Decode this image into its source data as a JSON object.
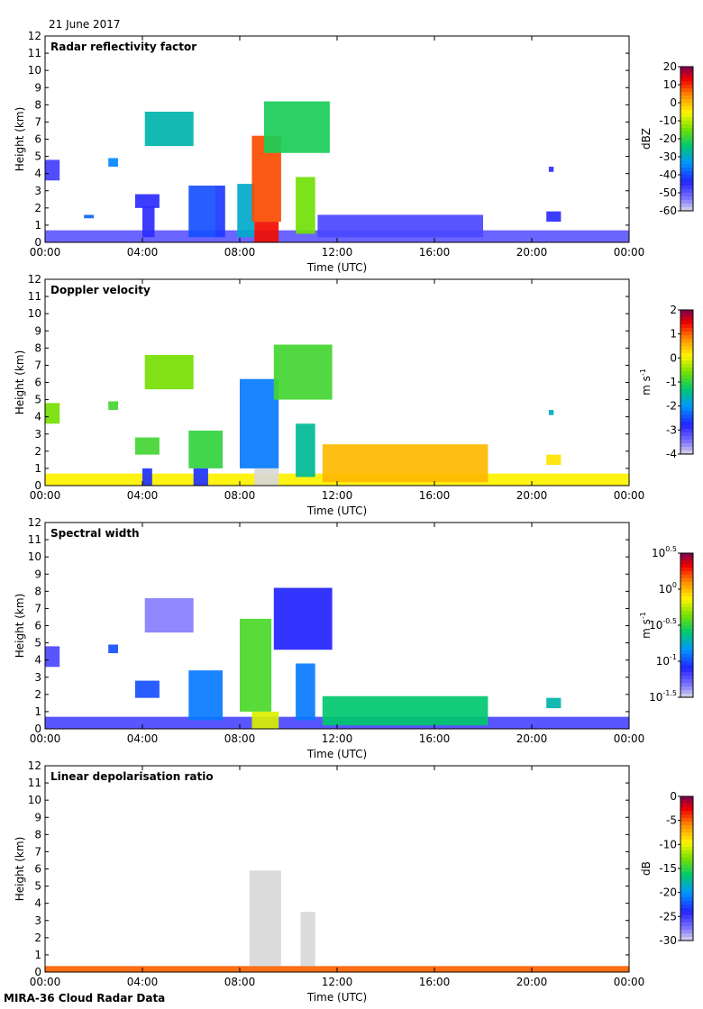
{
  "date_label": "21 June 2017",
  "footer": "MIRA-36 Cloud Radar Data",
  "chart_data": [
    {
      "type": "heatmap",
      "title": "Radar reflectivity factor",
      "xlabel": "Time (UTC)",
      "ylabel": "Height (km)",
      "xlim": [
        0,
        24
      ],
      "ylim": [
        0,
        12
      ],
      "xticks": [
        "00:00",
        "04:00",
        "08:00",
        "12:00",
        "16:00",
        "20:00",
        "00:00"
      ],
      "yticks": [
        "0",
        "1",
        "2",
        "3",
        "4",
        "5",
        "6",
        "7",
        "8",
        "9",
        "10",
        "11",
        "12"
      ],
      "colorbar": {
        "label": "dBZ",
        "ticks": [
          "20",
          "10",
          "0",
          "-10",
          "-20",
          "-30",
          "-40",
          "-50",
          "-60"
        ],
        "range": [
          -60,
          20
        ]
      },
      "regions": [
        {
          "t0": 0.0,
          "t1": 24.0,
          "h0": 0.0,
          "h1": 0.7,
          "value": -50
        },
        {
          "t0": 0.0,
          "t1": 0.6,
          "h0": 3.6,
          "h1": 4.8,
          "value": -47
        },
        {
          "t0": 1.6,
          "t1": 2.0,
          "h0": 1.4,
          "h1": 1.6,
          "value": -38
        },
        {
          "t0": 2.6,
          "t1": 3.0,
          "h0": 4.4,
          "h1": 4.9,
          "value": -35
        },
        {
          "t0": 3.7,
          "t1": 4.7,
          "h0": 2.0,
          "h1": 2.8,
          "value": -45
        },
        {
          "t0": 4.0,
          "t1": 4.5,
          "h0": 0.3,
          "h1": 2.1,
          "value": -45
        },
        {
          "t0": 4.1,
          "t1": 6.1,
          "h0": 5.6,
          "h1": 7.6,
          "value": -28
        },
        {
          "t0": 5.9,
          "t1": 7.0,
          "h0": 0.3,
          "h1": 3.3,
          "value": -40
        },
        {
          "t0": 7.0,
          "t1": 7.4,
          "h0": 0.3,
          "h1": 3.3,
          "value": -42
        },
        {
          "t0": 7.9,
          "t1": 8.6,
          "h0": 0.3,
          "h1": 3.4,
          "value": -30
        },
        {
          "t0": 8.5,
          "t1": 9.7,
          "h0": 1.2,
          "h1": 6.2,
          "value": 8
        },
        {
          "t0": 8.6,
          "t1": 9.6,
          "h0": 0.0,
          "h1": 1.2,
          "value": 12
        },
        {
          "t0": 9.0,
          "t1": 11.7,
          "h0": 5.2,
          "h1": 8.2,
          "value": -22
        },
        {
          "t0": 10.3,
          "t1": 11.1,
          "h0": 0.5,
          "h1": 3.8,
          "value": -15
        },
        {
          "t0": 11.2,
          "t1": 18.0,
          "h0": 0.3,
          "h1": 1.6,
          "value": -48
        },
        {
          "t0": 20.6,
          "t1": 21.2,
          "h0": 1.2,
          "h1": 1.8,
          "value": -45
        },
        {
          "t0": 20.7,
          "t1": 20.9,
          "h0": 4.1,
          "h1": 4.4,
          "value": -45
        }
      ]
    },
    {
      "type": "heatmap",
      "title": "Doppler velocity",
      "xlabel": "Time (UTC)",
      "ylabel": "Height (km)",
      "xlim": [
        0,
        24
      ],
      "ylim": [
        0,
        12
      ],
      "xticks": [
        "00:00",
        "04:00",
        "08:00",
        "12:00",
        "16:00",
        "20:00",
        "00:00"
      ],
      "yticks": [
        "0",
        "1",
        "2",
        "3",
        "4",
        "5",
        "6",
        "7",
        "8",
        "9",
        "10",
        "11",
        "12"
      ],
      "colorbar": {
        "label": "m s-1",
        "ticks": [
          "2",
          "1",
          "0",
          "-1",
          "-2",
          "-3",
          "-4"
        ],
        "range": [
          -4,
          2
        ]
      },
      "regions": [
        {
          "t0": 0.0,
          "t1": 24.0,
          "h0": 0.0,
          "h1": 0.7,
          "value": 0.1
        },
        {
          "t0": 0.0,
          "t1": 0.6,
          "h0": 3.6,
          "h1": 4.8,
          "value": -0.6
        },
        {
          "t0": 2.6,
          "t1": 3.0,
          "h0": 4.4,
          "h1": 4.9,
          "value": -0.9
        },
        {
          "t0": 3.7,
          "t1": 4.7,
          "h0": 1.8,
          "h1": 2.8,
          "value": -0.9
        },
        {
          "t0": 4.1,
          "t1": 6.1,
          "h0": 5.6,
          "h1": 7.6,
          "value": -0.6
        },
        {
          "t0": 4.0,
          "t1": 4.4,
          "h0": 0.0,
          "h1": 1.0,
          "value": -2.7
        },
        {
          "t0": 5.9,
          "t1": 7.3,
          "h0": 1.0,
          "h1": 3.2,
          "value": -1.0
        },
        {
          "t0": 6.1,
          "t1": 6.7,
          "h0": 0.0,
          "h1": 1.0,
          "value": -2.7
        },
        {
          "t0": 8.0,
          "t1": 9.6,
          "h0": 1.0,
          "h1": 6.2,
          "value": -2.2
        },
        {
          "t0": 8.6,
          "t1": 9.6,
          "h0": 0.0,
          "h1": 1.0,
          "value": -99
        },
        {
          "t0": 9.4,
          "t1": 11.8,
          "h0": 5.0,
          "h1": 8.2,
          "value": -0.9
        },
        {
          "t0": 10.3,
          "t1": 11.1,
          "h0": 0.5,
          "h1": 3.6,
          "value": -1.5
        },
        {
          "t0": 11.4,
          "t1": 18.2,
          "h0": 0.2,
          "h1": 2.4,
          "value": 0.5
        },
        {
          "t0": 20.6,
          "t1": 21.2,
          "h0": 1.2,
          "h1": 1.8,
          "value": 0.2
        },
        {
          "t0": 20.7,
          "t1": 20.9,
          "h0": 4.1,
          "h1": 4.4,
          "value": -1.7
        }
      ]
    },
    {
      "type": "heatmap",
      "title": "Spectral width",
      "xlabel": "Time (UTC)",
      "ylabel": "Height (km)",
      "xlim": [
        0,
        24
      ],
      "ylim": [
        0,
        12
      ],
      "xticks": [
        "00:00",
        "04:00",
        "08:00",
        "12:00",
        "16:00",
        "20:00",
        "00:00"
      ],
      "yticks": [
        "0",
        "1",
        "2",
        "3",
        "4",
        "5",
        "6",
        "7",
        "8",
        "9",
        "10",
        "11",
        "12"
      ],
      "colorbar": {
        "label": "m s-1",
        "ticks": [
          "10^0.5",
          "10^0",
          "10^-0.5",
          "10^-1",
          "10^-1.5"
        ],
        "range": [
          -1.5,
          0.5
        ],
        "scale": "log10"
      },
      "regions": [
        {
          "t0": 0.0,
          "t1": 24.0,
          "h0": 0.0,
          "h1": 0.7,
          "value": -1.2
        },
        {
          "t0": 0.0,
          "t1": 0.6,
          "h0": 3.6,
          "h1": 4.8,
          "value": -1.2
        },
        {
          "t0": 2.6,
          "t1": 3.0,
          "h0": 4.4,
          "h1": 4.9,
          "value": -1.0
        },
        {
          "t0": 3.7,
          "t1": 4.7,
          "h0": 1.8,
          "h1": 2.8,
          "value": -1.0
        },
        {
          "t0": 4.1,
          "t1": 6.1,
          "h0": 5.6,
          "h1": 7.6,
          "value": -1.35
        },
        {
          "t0": 5.9,
          "t1": 7.3,
          "h0": 0.5,
          "h1": 3.4,
          "value": -0.9
        },
        {
          "t0": 8.0,
          "t1": 9.3,
          "h0": 1.0,
          "h1": 6.4,
          "value": -0.45
        },
        {
          "t0": 8.5,
          "t1": 9.6,
          "h0": 0.0,
          "h1": 1.0,
          "value": -0.2
        },
        {
          "t0": 9.4,
          "t1": 11.8,
          "h0": 4.6,
          "h1": 8.2,
          "value": -1.1
        },
        {
          "t0": 10.3,
          "t1": 11.1,
          "h0": 0.5,
          "h1": 3.8,
          "value": -0.9
        },
        {
          "t0": 11.4,
          "t1": 18.2,
          "h0": 0.2,
          "h1": 1.9,
          "value": -0.6
        },
        {
          "t0": 20.6,
          "t1": 21.2,
          "h0": 1.2,
          "h1": 1.8,
          "value": -0.7
        }
      ]
    },
    {
      "type": "heatmap",
      "title": "Linear depolarisation ratio",
      "xlabel": "Time (UTC)",
      "ylabel": "Height (km)",
      "xlim": [
        0,
        24
      ],
      "ylim": [
        0,
        12
      ],
      "xticks": [
        "00:00",
        "04:00",
        "08:00",
        "12:00",
        "16:00",
        "20:00",
        "00:00"
      ],
      "yticks": [
        "0",
        "1",
        "2",
        "3",
        "4",
        "5",
        "6",
        "7",
        "8",
        "9",
        "10",
        "11",
        "12"
      ],
      "colorbar": {
        "label": "dB",
        "ticks": [
          "0",
          "-5",
          "-10",
          "-15",
          "-20",
          "-25",
          "-30"
        ],
        "range": [
          -30,
          0
        ]
      },
      "regions": [
        {
          "t0": 0.0,
          "t1": 24.0,
          "h0": 0.0,
          "h1": 0.35,
          "value": -5
        },
        {
          "t0": 8.4,
          "t1": 9.7,
          "h0": 0.35,
          "h1": 5.9,
          "value": -99
        },
        {
          "t0": 10.5,
          "t1": 11.1,
          "h0": 0.35,
          "h1": 3.5,
          "value": -99
        }
      ]
    }
  ]
}
